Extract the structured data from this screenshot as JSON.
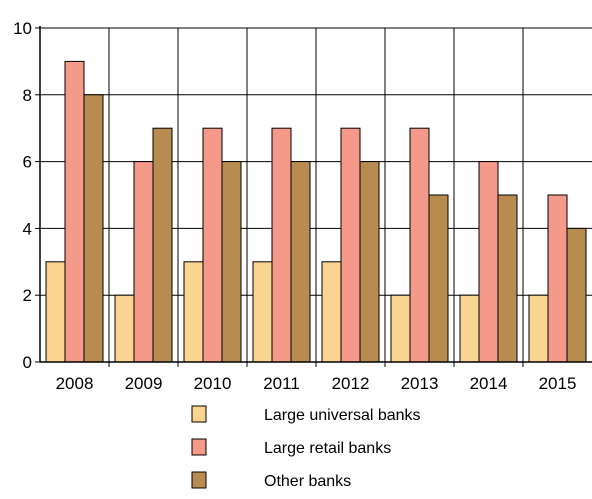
{
  "chart_data": {
    "type": "bar",
    "categories": [
      "2008",
      "2009",
      "2010",
      "2011",
      "2012",
      "2013",
      "2014",
      "2015"
    ],
    "series": [
      {
        "name": "Large universal banks",
        "color": "#fad591",
        "values": [
          3,
          2,
          3,
          3,
          3,
          2,
          2,
          2
        ]
      },
      {
        "name": "Large retail banks",
        "color": "#f5998a",
        "values": [
          9,
          6,
          7,
          7,
          7,
          7,
          6,
          5
        ]
      },
      {
        "name": "Other banks",
        "color": "#b88c50",
        "values": [
          8,
          7,
          6,
          6,
          6,
          5,
          5,
          4
        ]
      }
    ],
    "yticks": [
      "0",
      "2",
      "4",
      "6",
      "8",
      "10"
    ],
    "ylim": [
      0,
      10
    ],
    "grid": true,
    "legend_position": "bottom"
  }
}
